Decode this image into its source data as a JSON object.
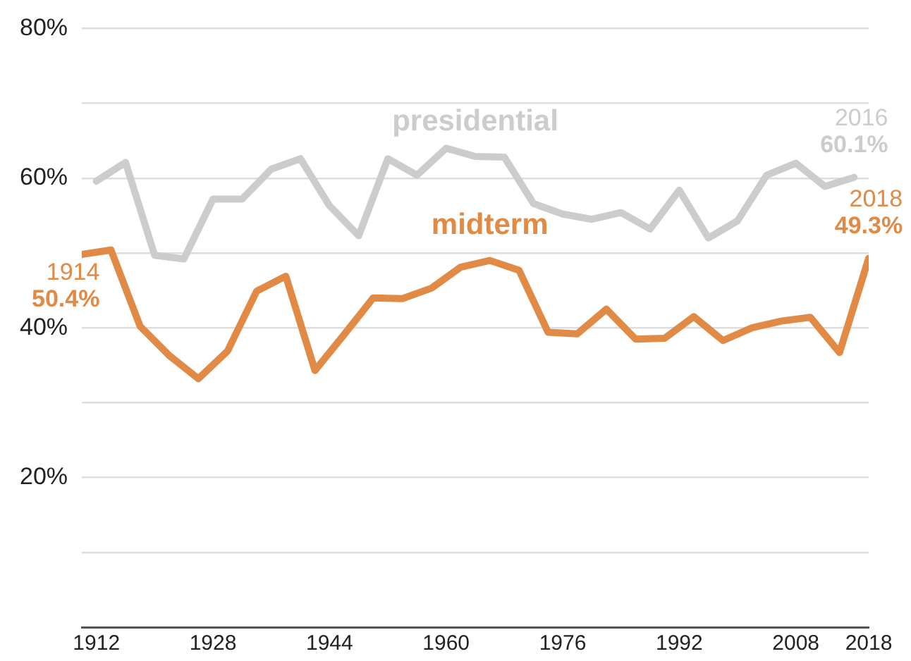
{
  "chart_data": {
    "type": "line",
    "xlim": [
      1910,
      2018
    ],
    "xticks": [
      1912,
      1928,
      1944,
      1960,
      1976,
      1992,
      2008,
      2018
    ],
    "ylim": [
      0,
      80
    ],
    "yticks": [
      {
        "value": 10,
        "label": null
      },
      {
        "value": 20,
        "label": "20%"
      },
      {
        "value": 30,
        "label": null
      },
      {
        "value": 40,
        "label": "40%"
      },
      {
        "value": 50,
        "label": null
      },
      {
        "value": 60,
        "label": "60%"
      },
      {
        "value": 70,
        "label": null
      },
      {
        "value": 80,
        "label": "80%"
      }
    ],
    "grid": "y",
    "legend": false,
    "marker": "none",
    "line_style": "solid",
    "series": [
      {
        "name": "presidential",
        "color": "#cccccc",
        "x": [
          1912,
          1916,
          1920,
          1924,
          1928,
          1932,
          1936,
          1940,
          1944,
          1948,
          1952,
          1956,
          1960,
          1964,
          1968,
          1972,
          1976,
          1980,
          1984,
          1988,
          1992,
          1996,
          2000,
          2004,
          2008,
          2012,
          2016
        ],
        "values": [
          59.6,
          62.1,
          49.7,
          49.2,
          57.2,
          57.2,
          61.2,
          62.6,
          56.3,
          52.3,
          62.6,
          60.4,
          64.0,
          62.9,
          62.8,
          56.6,
          55.2,
          54.5,
          55.4,
          53.2,
          58.4,
          52.0,
          54.3,
          60.4,
          62.0,
          58.9,
          60.1
        ]
      },
      {
        "name": "midterm",
        "color": "#e08a45",
        "x": [
          1910,
          1914,
          1918,
          1922,
          1926,
          1930,
          1934,
          1938,
          1942,
          1946,
          1950,
          1954,
          1958,
          1962,
          1966,
          1970,
          1974,
          1978,
          1982,
          1986,
          1990,
          1994,
          1998,
          2002,
          2006,
          2010,
          2014,
          2018
        ],
        "values": [
          49.8,
          50.4,
          40.2,
          36.3,
          33.2,
          36.9,
          44.9,
          46.9,
          34.3,
          39.1,
          44.0,
          43.9,
          45.3,
          48.1,
          49.0,
          47.7,
          39.4,
          39.2,
          42.5,
          38.5,
          38.6,
          41.5,
          38.3,
          40.0,
          40.9,
          41.4,
          36.7,
          49.3
        ]
      }
    ],
    "annotations": [
      {
        "text": "1914\n50.4%",
        "x": 1914,
        "y": 50.4
      },
      {
        "text": "2016\n60.1%",
        "x": 2016,
        "y": 60.1
      },
      {
        "text": "2018\n49.3%",
        "x": 2018,
        "y": 49.3
      }
    ]
  }
}
